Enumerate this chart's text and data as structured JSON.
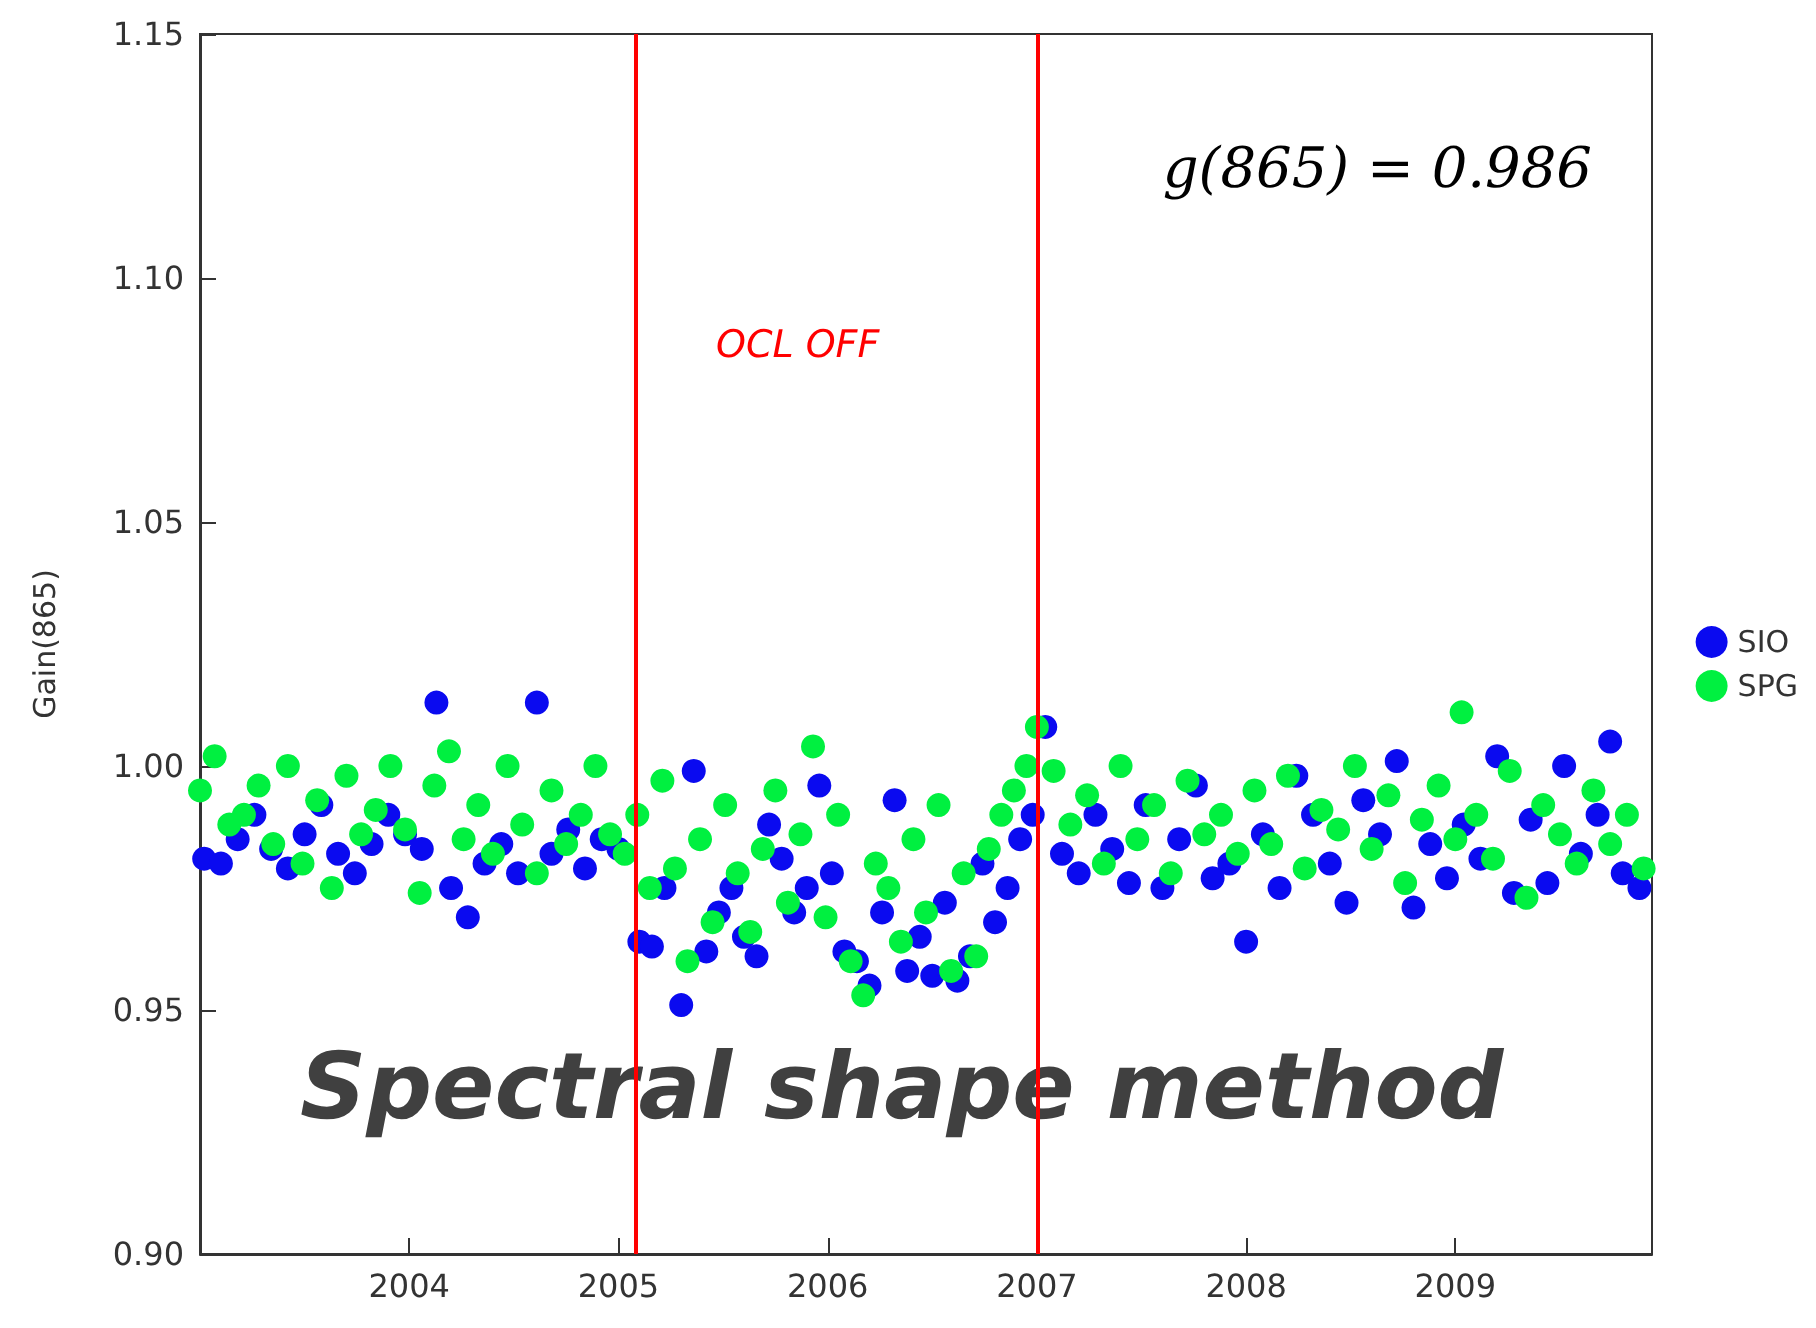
{
  "chart_data": {
    "type": "scatter",
    "ylabel": "Gain(865)",
    "xlim": [
      2003,
      2009.94
    ],
    "xticks": [
      2004,
      2005,
      2006,
      2007,
      2008,
      2009
    ],
    "ylim": [
      0.9,
      1.15
    ],
    "yticks": [
      {
        "value": 0.9,
        "label": "0.90"
      },
      {
        "value": 0.95,
        "label": "0.95"
      },
      {
        "value": 1.0,
        "label": "1.00"
      },
      {
        "value": 1.05,
        "label": "1.05"
      },
      {
        "value": 1.1,
        "label": "1.10"
      },
      {
        "value": 1.15,
        "label": "1.15"
      }
    ],
    "grid": false,
    "legend": "right",
    "marker": "circle",
    "ref_lines": [
      {
        "axis": "x",
        "value": 2005.08,
        "label": null,
        "color": "#ff0000"
      },
      {
        "axis": "x",
        "value": 2007.0,
        "label": null,
        "color": "#ff0000"
      }
    ],
    "annotations": [
      "g(865) = 0.986",
      "Spectral shape method",
      "OCL OFF"
    ],
    "series": [
      {
        "name": "SIO",
        "color": "#0a0af0",
        "x": [
          2003.02,
          2003.1,
          2003.18,
          2003.26,
          2003.34,
          2003.42,
          2003.5,
          2003.58,
          2003.66,
          2003.74,
          2003.82,
          2003.9,
          2003.98,
          2004.06,
          2004.13,
          2004.2,
          2004.28,
          2004.36,
          2004.44,
          2004.52,
          2004.61,
          2004.68,
          2004.76,
          2004.84,
          2004.92,
          2005.0,
          2005.1,
          2005.16,
          2005.22,
          2005.3,
          2005.36,
          2005.42,
          2005.48,
          2005.54,
          2005.6,
          2005.66,
          2005.72,
          2005.78,
          2005.84,
          2005.9,
          2005.96,
          2006.02,
          2006.08,
          2006.14,
          2006.2,
          2006.26,
          2006.32,
          2006.38,
          2006.44,
          2006.5,
          2006.56,
          2006.62,
          2006.68,
          2006.74,
          2006.8,
          2006.86,
          2006.92,
          2006.98,
          2007.04,
          2007.12,
          2007.2,
          2007.28,
          2007.36,
          2007.44,
          2007.52,
          2007.6,
          2007.68,
          2007.76,
          2007.84,
          2007.92,
          2008.0,
          2008.08,
          2008.16,
          2008.24,
          2008.32,
          2008.4,
          2008.48,
          2008.56,
          2008.64,
          2008.72,
          2008.8,
          2008.88,
          2008.96,
          2009.04,
          2009.12,
          2009.2,
          2009.28,
          2009.36,
          2009.44,
          2009.52,
          2009.6,
          2009.68,
          2009.74,
          2009.8,
          2009.88
        ],
        "values": [
          0.981,
          0.98,
          0.985,
          0.99,
          0.983,
          0.979,
          0.986,
          0.992,
          0.982,
          0.978,
          0.984,
          0.99,
          0.986,
          0.983,
          1.013,
          0.975,
          0.969,
          0.98,
          0.984,
          0.978,
          1.013,
          0.982,
          0.987,
          0.979,
          0.985,
          0.983,
          0.964,
          0.963,
          0.975,
          0.951,
          0.999,
          0.962,
          0.97,
          0.975,
          0.965,
          0.961,
          0.988,
          0.981,
          0.97,
          0.975,
          0.996,
          0.978,
          0.962,
          0.96,
          0.955,
          0.97,
          0.993,
          0.958,
          0.965,
          0.957,
          0.972,
          0.956,
          0.961,
          0.98,
          0.968,
          0.975,
          0.985,
          0.99,
          1.008,
          0.982,
          0.978,
          0.99,
          0.983,
          0.976,
          0.992,
          0.975,
          0.985,
          0.996,
          0.977,
          0.98,
          0.964,
          0.986,
          0.975,
          0.998,
          0.99,
          0.98,
          0.972,
          0.993,
          0.986,
          1.001,
          0.971,
          0.984,
          0.977,
          0.988,
          0.981,
          1.002,
          0.974,
          0.989,
          0.976,
          1.0,
          0.982,
          0.99,
          1.005,
          0.978,
          0.975
        ]
      },
      {
        "name": "SPG",
        "color": "#00f040",
        "x": [
          2003.0,
          2003.07,
          2003.14,
          2003.21,
          2003.28,
          2003.35,
          2003.42,
          2003.49,
          2003.56,
          2003.63,
          2003.7,
          2003.77,
          2003.84,
          2003.91,
          2003.98,
          2004.05,
          2004.12,
          2004.19,
          2004.26,
          2004.33,
          2004.4,
          2004.47,
          2004.54,
          2004.61,
          2004.68,
          2004.75,
          2004.82,
          2004.89,
          2004.96,
          2005.03,
          2005.09,
          2005.15,
          2005.21,
          2005.27,
          2005.33,
          2005.39,
          2005.45,
          2005.51,
          2005.57,
          2005.63,
          2005.69,
          2005.75,
          2005.81,
          2005.87,
          2005.93,
          2005.99,
          2006.05,
          2006.11,
          2006.17,
          2006.23,
          2006.29,
          2006.35,
          2006.41,
          2006.47,
          2006.53,
          2006.59,
          2006.65,
          2006.71,
          2006.77,
          2006.83,
          2006.89,
          2006.95,
          2007.0,
          2007.08,
          2007.16,
          2007.24,
          2007.32,
          2007.4,
          2007.48,
          2007.56,
          2007.64,
          2007.72,
          2007.8,
          2007.88,
          2007.96,
          2008.04,
          2008.12,
          2008.2,
          2008.28,
          2008.36,
          2008.44,
          2008.52,
          2008.6,
          2008.68,
          2008.76,
          2008.84,
          2008.92,
          2009.0,
          2009.03,
          2009.1,
          2009.18,
          2009.26,
          2009.34,
          2009.42,
          2009.5,
          2009.58,
          2009.66,
          2009.74,
          2009.82,
          2009.9
        ],
        "values": [
          0.995,
          1.002,
          0.988,
          0.99,
          0.996,
          0.984,
          1.0,
          0.98,
          0.993,
          0.975,
          0.998,
          0.986,
          0.991,
          1.0,
          0.987,
          0.974,
          0.996,
          1.003,
          0.985,
          0.992,
          0.982,
          1.0,
          0.988,
          0.978,
          0.995,
          0.984,
          0.99,
          1.0,
          0.986,
          0.982,
          0.99,
          0.975,
          0.997,
          0.979,
          0.96,
          0.985,
          0.968,
          0.992,
          0.978,
          0.966,
          0.983,
          0.995,
          0.972,
          0.986,
          1.004,
          0.969,
          0.99,
          0.96,
          0.953,
          0.98,
          0.975,
          0.964,
          0.985,
          0.97,
          0.992,
          0.958,
          0.978,
          0.961,
          0.983,
          0.99,
          0.995,
          1.0,
          1.008,
          0.999,
          0.988,
          0.994,
          0.98,
          1.0,
          0.985,
          0.992,
          0.978,
          0.997,
          0.986,
          0.99,
          0.982,
          0.995,
          0.984,
          0.998,
          0.979,
          0.991,
          0.987,
          1.0,
          0.983,
          0.994,
          0.976,
          0.989,
          0.996,
          0.985,
          1.011,
          0.99,
          0.981,
          0.999,
          0.973,
          0.992,
          0.986,
          0.98,
          0.995,
          0.984,
          0.99,
          0.979
        ]
      }
    ]
  }
}
